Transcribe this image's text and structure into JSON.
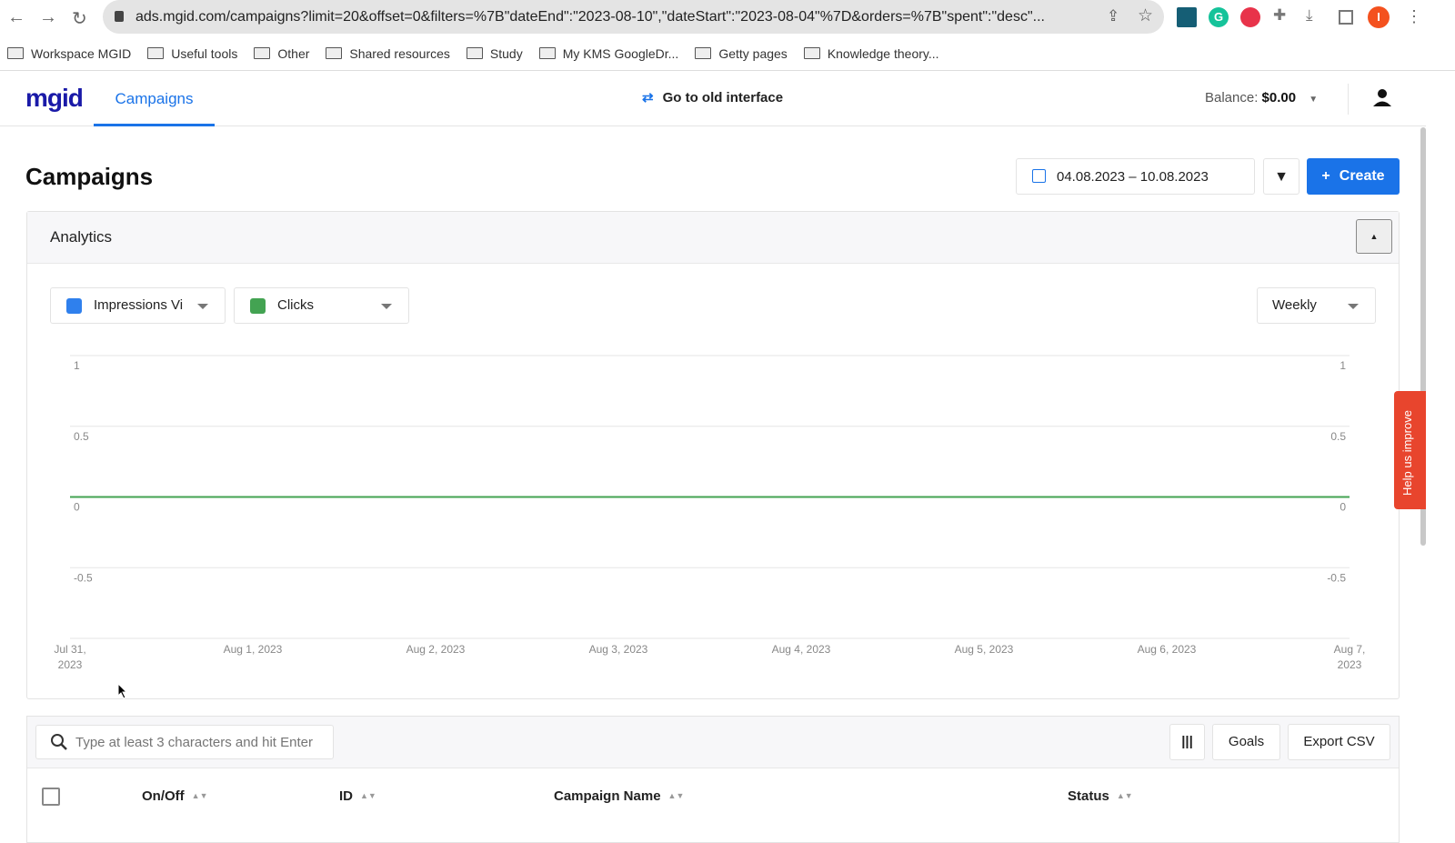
{
  "browser": {
    "url": "ads.mgid.com/campaigns?limit=20&offset=0&filters=%7B\"dateEnd\":\"2023-08-10\",\"dateStart\":\"2023-08-04\"%7D&orders=%7B\"spent\":\"desc\"...",
    "profile_initial": "I",
    "bookmarks": [
      "Workspace MGID",
      "Useful tools",
      "Other",
      "Shared resources",
      "Study",
      "My KMS GoogleDr...",
      "Getty pages",
      "Knowledge theory..."
    ]
  },
  "header": {
    "logo": "mgid",
    "tab": "Campaigns",
    "old_interface": "Go to old interface",
    "balance_label": "Balance:",
    "balance_value": "$0.00"
  },
  "page": {
    "title": "Campaigns",
    "date_range": "04.08.2023 – 10.08.2023",
    "create_label": "Create"
  },
  "analytics": {
    "title": "Analytics",
    "metric1": "Impressions Vi",
    "metric1_color": "#2f80ed",
    "metric2": "Clicks",
    "metric2_color": "#43a352",
    "period": "Weekly"
  },
  "chart_data": {
    "type": "line",
    "x": [
      "Jul 31, 2023",
      "Aug 1, 2023",
      "Aug 2, 2023",
      "Aug 3, 2023",
      "Aug 4, 2023",
      "Aug 5, 2023",
      "Aug 6, 2023",
      "Aug 7, 2023"
    ],
    "yticks": [
      "1",
      "0.5",
      "0",
      "-0.5"
    ],
    "ylim": [
      -1,
      1
    ],
    "grid": true,
    "series": [
      {
        "name": "Clicks",
        "color": "#43a352",
        "values": [
          0,
          0,
          0,
          0,
          0,
          0,
          0,
          0
        ]
      }
    ]
  },
  "help_tab": "Help us improve",
  "table": {
    "search_placeholder": "Type at least 3 characters and hit Enter",
    "goals_label": "Goals",
    "export_label": "Export CSV",
    "columns": [
      "On/Off",
      "ID",
      "Campaign Name",
      "Status"
    ]
  }
}
